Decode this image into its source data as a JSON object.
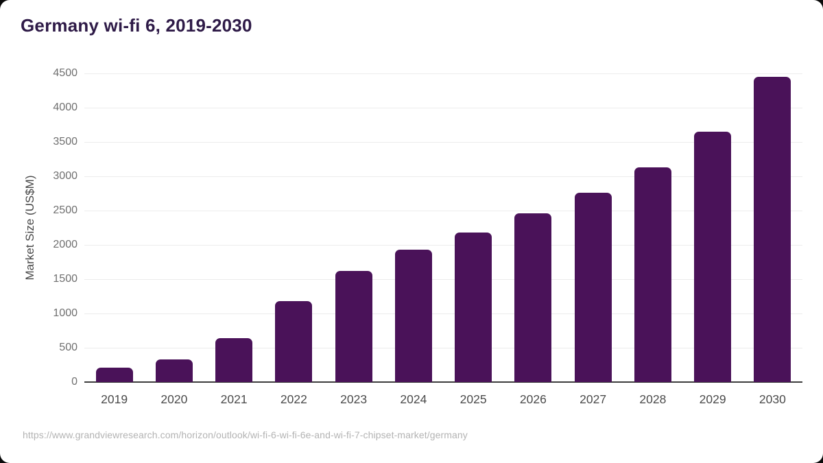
{
  "page": {
    "source_url": "https://www.grandviewresearch.com/horizon/outlook/wi-fi-6-wi-fi-6e-and-wi-fi-7-chipset-market/germany"
  },
  "chart_data": {
    "type": "bar",
    "title": "Germany wi-fi 6, 2019-2030",
    "categories": [
      "2019",
      "2020",
      "2021",
      "2022",
      "2023",
      "2024",
      "2025",
      "2026",
      "2027",
      "2028",
      "2029",
      "2030"
    ],
    "values": [
      215,
      330,
      640,
      1185,
      1620,
      1930,
      2185,
      2460,
      2765,
      3135,
      3650,
      4455
    ],
    "xlabel": "",
    "ylabel": "Market Size (US$M)",
    "ylim": [
      0,
      4500
    ],
    "ytick_step": 500,
    "grid": true,
    "legend": false,
    "bar_color": "#4a1259",
    "colors": {
      "title": "#2e1a47",
      "axis_title": "#474747",
      "y_tick_label": "#6f6f6f",
      "x_tick_label": "#4b4b4b",
      "gridline": "#ececec",
      "baseline": "#3c3c3c",
      "source_text": "#b3b3b3",
      "background": "#ffffff"
    }
  }
}
